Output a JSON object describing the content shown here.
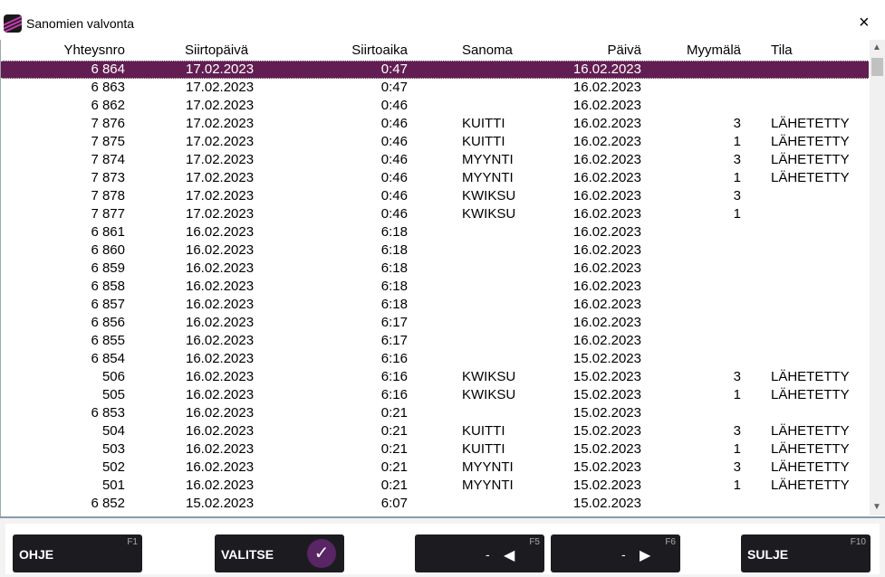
{
  "window": {
    "title": "Sanomien valvonta",
    "close_icon": "×"
  },
  "columns": [
    "Yhteysnro",
    "Siirtopäivä",
    "Siirtoaika",
    "Sanoma",
    "Päivä",
    "Myymälä",
    "Tila"
  ],
  "rows": [
    [
      "6 864",
      "17.02.2023",
      "0:47",
      "",
      "16.02.2023",
      "",
      ""
    ],
    [
      "6 863",
      "17.02.2023",
      "0:47",
      "",
      "16.02.2023",
      "",
      ""
    ],
    [
      "6 862",
      "17.02.2023",
      "0:46",
      "",
      "16.02.2023",
      "",
      ""
    ],
    [
      "7 876",
      "17.02.2023",
      "0:46",
      "KUITTI",
      "16.02.2023",
      "3",
      "LÄHETETTY"
    ],
    [
      "7 875",
      "17.02.2023",
      "0:46",
      "KUITTI",
      "16.02.2023",
      "1",
      "LÄHETETTY"
    ],
    [
      "7 874",
      "17.02.2023",
      "0:46",
      "MYYNTI",
      "16.02.2023",
      "3",
      "LÄHETETTY"
    ],
    [
      "7 873",
      "17.02.2023",
      "0:46",
      "MYYNTI",
      "16.02.2023",
      "1",
      "LÄHETETTY"
    ],
    [
      "7 878",
      "17.02.2023",
      "0:46",
      "KWIKSU",
      "16.02.2023",
      "3",
      ""
    ],
    [
      "7 877",
      "17.02.2023",
      "0:46",
      "KWIKSU",
      "16.02.2023",
      "1",
      ""
    ],
    [
      "6 861",
      "16.02.2023",
      "6:18",
      "",
      "16.02.2023",
      "",
      ""
    ],
    [
      "6 860",
      "16.02.2023",
      "6:18",
      "",
      "16.02.2023",
      "",
      ""
    ],
    [
      "6 859",
      "16.02.2023",
      "6:18",
      "",
      "16.02.2023",
      "",
      ""
    ],
    [
      "6 858",
      "16.02.2023",
      "6:18",
      "",
      "16.02.2023",
      "",
      ""
    ],
    [
      "6 857",
      "16.02.2023",
      "6:18",
      "",
      "16.02.2023",
      "",
      ""
    ],
    [
      "6 856",
      "16.02.2023",
      "6:17",
      "",
      "16.02.2023",
      "",
      ""
    ],
    [
      "6 855",
      "16.02.2023",
      "6:17",
      "",
      "16.02.2023",
      "",
      ""
    ],
    [
      "6 854",
      "16.02.2023",
      "6:16",
      "",
      "15.02.2023",
      "",
      ""
    ],
    [
      "506",
      "16.02.2023",
      "6:16",
      "KWIKSU",
      "15.02.2023",
      "3",
      "LÄHETETTY"
    ],
    [
      "505",
      "16.02.2023",
      "6:16",
      "KWIKSU",
      "15.02.2023",
      "1",
      "LÄHETETTY"
    ],
    [
      "6 853",
      "16.02.2023",
      "0:21",
      "",
      "15.02.2023",
      "",
      ""
    ],
    [
      "504",
      "16.02.2023",
      "0:21",
      "KUITTI",
      "15.02.2023",
      "3",
      "LÄHETETTY"
    ],
    [
      "503",
      "16.02.2023",
      "0:21",
      "KUITTI",
      "15.02.2023",
      "1",
      "LÄHETETTY"
    ],
    [
      "502",
      "16.02.2023",
      "0:21",
      "MYYNTI",
      "15.02.2023",
      "3",
      "LÄHETETTY"
    ],
    [
      "501",
      "16.02.2023",
      "0:21",
      "MYYNTI",
      "15.02.2023",
      "1",
      "LÄHETETTY"
    ],
    [
      "6 852",
      "15.02.2023",
      "6:07",
      "",
      "15.02.2023",
      "",
      ""
    ]
  ],
  "selected_row": 0,
  "buttons": {
    "help": {
      "label": "OHJE",
      "key": "F1"
    },
    "select": {
      "label": "VALITSE",
      "key": ""
    },
    "prev": {
      "label": "-",
      "key": "F5"
    },
    "next": {
      "label": "-",
      "key": "F6"
    },
    "close": {
      "label": "SULJE",
      "key": "F10"
    }
  },
  "colors": {
    "selection": "#621e52",
    "button": "#1c1c20",
    "accent": "#5a2564"
  }
}
